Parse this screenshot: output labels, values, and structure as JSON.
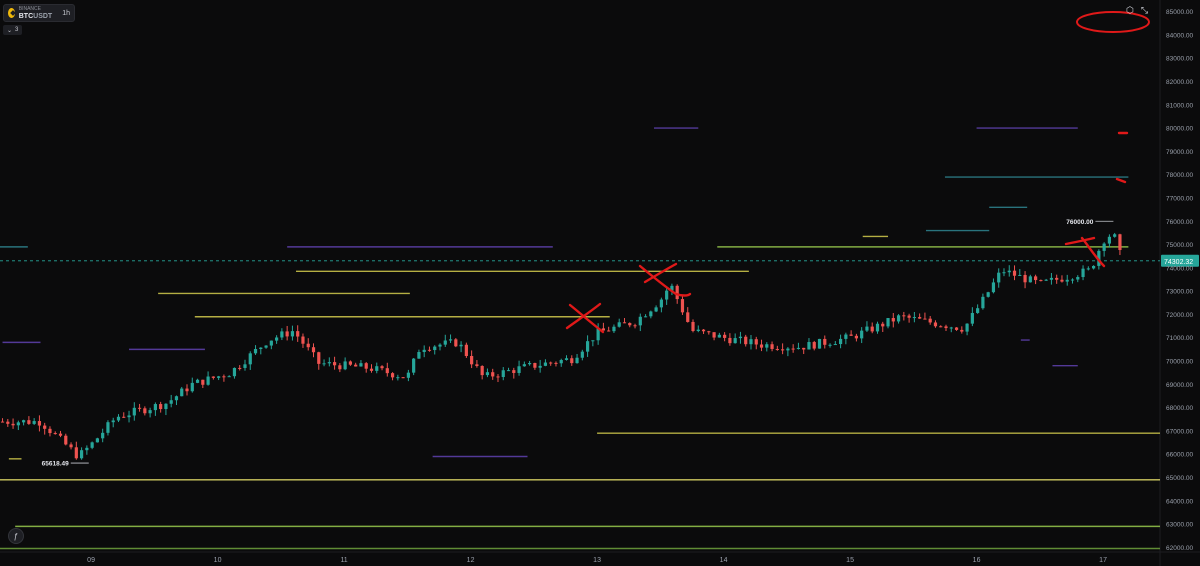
{
  "symbol": {
    "exchange": "BINANCE",
    "base": "BTC",
    "quote": "USDT",
    "timeframe": "1h",
    "indicator_toggle": "3"
  },
  "toolbar": {
    "settings_icon": "hexagon-icon",
    "fullscreen_icon": "expand-arrows-icon"
  },
  "colors": {
    "background": "#0b0b0c",
    "bull": "#26a69a",
    "bear": "#ef5350",
    "annotation": "#e01919",
    "level_yellow": "#c8c14a",
    "level_green": "#8fbf4a",
    "level_purple": "#5b3fa8",
    "level_teal": "#2d7f8a"
  },
  "chart_data": {
    "type": "candlestick",
    "ylim": [
      61800,
      85500
    ],
    "y_ticks": [
      62000,
      63000,
      64000,
      65000,
      66000,
      67000,
      68000,
      69000,
      70000,
      71000,
      72000,
      73000,
      74000,
      75000,
      76000,
      77000,
      78000,
      79000,
      80000,
      81000,
      82000,
      83000,
      84000,
      85000
    ],
    "y_tick_labels": [
      "62000.00",
      "63000.00",
      "64000.00",
      "65000.00",
      "66000.00",
      "67000.00",
      "68000.00",
      "69000.00",
      "70000.00",
      "71000.00",
      "72000.00",
      "73000.00",
      "74000.00",
      "75000.00",
      "76000.00",
      "77000.00",
      "78000.00",
      "79000.00",
      "80000.00",
      "81000.00",
      "82000.00",
      "83000.00",
      "84000.00",
      "85000.00"
    ],
    "x_ticks": [
      9,
      10,
      11,
      12,
      13,
      14,
      15,
      16,
      17
    ],
    "x_tick_labels": [
      "09",
      "10",
      "11",
      "12",
      "13",
      "14",
      "15",
      "16",
      "17"
    ],
    "xlim": [
      8.28,
      17.45
    ],
    "current_price": 74302.32,
    "current_price_label": "74302.32",
    "annotations": [
      {
        "x": 8.95,
        "price": 65618.49,
        "text": "65618.49"
      },
      {
        "x": 17.05,
        "price": 76000.0,
        "text": "76000.00"
      }
    ],
    "path_anchors": [
      [
        8.3,
        67400
      ],
      [
        8.6,
        67400
      ],
      [
        8.9,
        65900
      ],
      [
        9.0,
        66400
      ],
      [
        9.2,
        67600
      ],
      [
        9.6,
        68200
      ],
      [
        9.8,
        69000
      ],
      [
        10.1,
        69500
      ],
      [
        10.4,
        70900
      ],
      [
        10.6,
        71300
      ],
      [
        10.8,
        69900
      ],
      [
        11.2,
        69700
      ],
      [
        11.5,
        69300
      ],
      [
        11.6,
        70600
      ],
      [
        11.9,
        70800
      ],
      [
        12.1,
        69300
      ],
      [
        12.4,
        69700
      ],
      [
        12.8,
        70100
      ],
      [
        13.0,
        71200
      ],
      [
        13.3,
        71700
      ],
      [
        13.5,
        72600
      ],
      [
        13.58,
        73300
      ],
      [
        13.75,
        71300
      ],
      [
        14.0,
        71000
      ],
      [
        14.3,
        70700
      ],
      [
        14.6,
        70600
      ],
      [
        15.0,
        71000
      ],
      [
        15.4,
        71900
      ],
      [
        15.9,
        71400
      ],
      [
        16.05,
        72600
      ],
      [
        16.2,
        73900
      ],
      [
        16.5,
        73300
      ],
      [
        16.9,
        73900
      ],
      [
        17.0,
        75200
      ],
      [
        17.08,
        75500
      ],
      [
        17.15,
        74300
      ]
    ],
    "levels": [
      {
        "price": 74900,
        "x0": 8.28,
        "x1": 8.5,
        "color": "#2d7f8a"
      },
      {
        "price": 74900,
        "x0": 10.55,
        "x1": 12.65,
        "color": "#5b3fa8"
      },
      {
        "price": 74900,
        "x0": 13.95,
        "x1": 17.2,
        "color": "#8fbf4a"
      },
      {
        "price": 73850,
        "x0": 10.62,
        "x1": 14.2,
        "color": "#c8c14a"
      },
      {
        "price": 72900,
        "x0": 9.53,
        "x1": 11.52,
        "color": "#c8c14a"
      },
      {
        "price": 71900,
        "x0": 9.82,
        "x1": 13.1,
        "color": "#c8c14a"
      },
      {
        "price": 66900,
        "x0": 13.0,
        "x1": 17.45,
        "color": "#c8c14a"
      },
      {
        "price": 64900,
        "x0": 8.28,
        "x1": 17.45,
        "color": "#e4dd6a"
      },
      {
        "price": 62900,
        "x0": 8.4,
        "x1": 17.45,
        "color": "#8fbf4a"
      },
      {
        "price": 61950,
        "x0": 8.28,
        "x1": 17.45,
        "color": "#6a9a3a"
      },
      {
        "price": 80000,
        "x0": 13.45,
        "x1": 13.8,
        "color": "#5b3fa8"
      },
      {
        "price": 80000,
        "x0": 16.0,
        "x1": 16.8,
        "color": "#5b3fa8"
      },
      {
        "price": 77900,
        "x0": 15.75,
        "x1": 17.2,
        "color": "#2d7f8a"
      },
      {
        "price": 76600,
        "x0": 16.1,
        "x1": 16.4,
        "color": "#2d7f8a"
      },
      {
        "price": 75600,
        "x0": 15.6,
        "x1": 16.1,
        "color": "#2d7f8a"
      },
      {
        "price": 75350,
        "x0": 15.1,
        "x1": 15.3,
        "color": "#c8c14a"
      },
      {
        "price": 70800,
        "x0": 8.3,
        "x1": 8.6,
        "color": "#5b3fa8"
      },
      {
        "price": 70500,
        "x0": 9.3,
        "x1": 9.9,
        "color": "#5b3fa8"
      },
      {
        "price": 65900,
        "x0": 11.7,
        "x1": 12.45,
        "color": "#5b3fa8"
      },
      {
        "price": 65800,
        "x0": 8.35,
        "x1": 8.45,
        "color": "#c8c14a"
      },
      {
        "price": 70900,
        "x0": 16.35,
        "x1": 16.42,
        "color": "#5b3fa8"
      },
      {
        "price": 69800,
        "x0": 16.6,
        "x1": 16.8,
        "color": "#5b3fa8"
      }
    ]
  }
}
